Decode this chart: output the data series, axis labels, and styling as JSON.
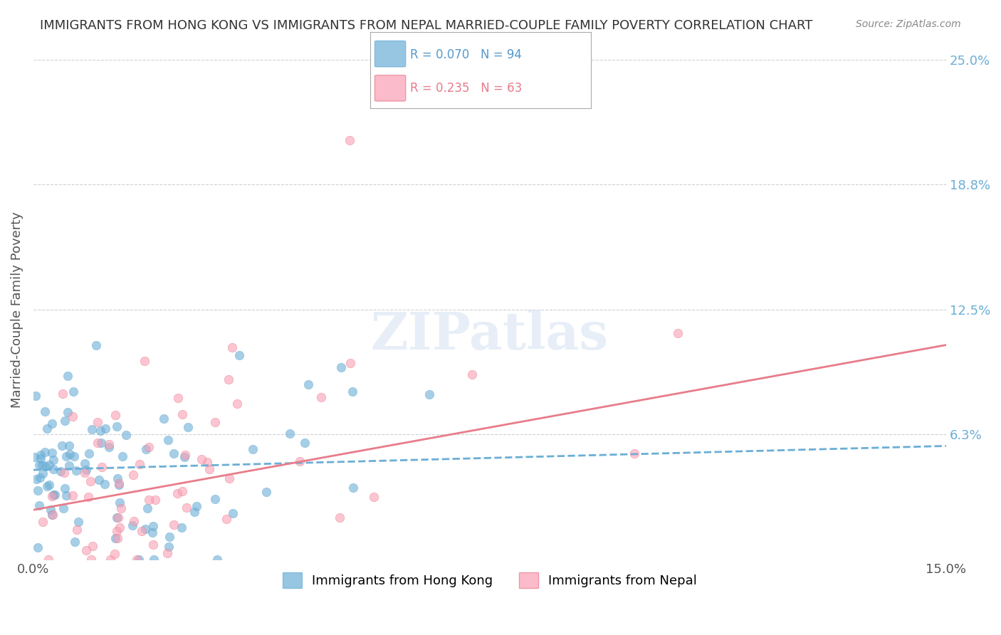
{
  "title": "IMMIGRANTS FROM HONG KONG VS IMMIGRANTS FROM NEPAL MARRIED-COUPLE FAMILY POVERTY CORRELATION CHART",
  "source": "Source: ZipAtlas.com",
  "xlabel": "",
  "ylabel": "Married-Couple Family Poverty",
  "xlim": [
    0.0,
    15.0
  ],
  "ylim": [
    0.0,
    25.0
  ],
  "xticks": [
    0.0,
    15.0
  ],
  "xtick_labels": [
    "0.0%",
    "15.0%"
  ],
  "ytick_positions": [
    6.3,
    12.5,
    18.8,
    25.0
  ],
  "ytick_labels": [
    "6.3%",
    "12.5%",
    "18.8%",
    "25.0%"
  ],
  "hk_R": 0.07,
  "hk_N": 94,
  "nepal_R": 0.235,
  "nepal_N": 63,
  "hk_color": "#6baed6",
  "nepal_color": "#fa9fb5",
  "hk_scatter_color": "#6baed6",
  "nepal_scatter_color": "#fa9fb5",
  "hk_line_color": "#6baed6",
  "nepal_line_color": "#e87c8a",
  "watermark": "ZIPatlas",
  "background_color": "#ffffff",
  "grid_color": "#d0d0d0",
  "label_color": "#6baed6",
  "hk_seed": 42,
  "nepal_seed": 123,
  "hk_x_mean": 1.5,
  "hk_x_std": 1.8,
  "nepal_x_mean": 3.5,
  "nepal_x_std": 2.5,
  "hk_y_intercept": 4.5,
  "hk_slope": 0.08,
  "nepal_y_intercept": 2.5,
  "nepal_slope": 0.55
}
